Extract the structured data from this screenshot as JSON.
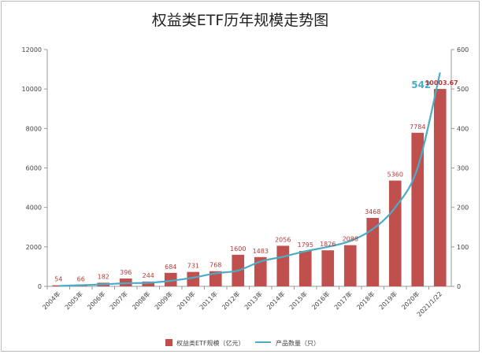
{
  "chart_data": {
    "type": "bar",
    "title": "权益类ETF历年规模走势图",
    "categories": [
      "2004年",
      "2005年",
      "2006年",
      "2007年",
      "2008年",
      "2009年",
      "2010年",
      "2011年",
      "2012年",
      "2013年",
      "2014年",
      "2015年",
      "2016年",
      "2017年",
      "2018年",
      "2019年",
      "2020年",
      "2021/1/22"
    ],
    "series": [
      {
        "name": "权益类ETF规模（亿元）",
        "type": "bar",
        "axis": "left",
        "color": "#c0504d",
        "values": [
          54,
          66,
          182,
          396,
          244,
          684,
          731,
          768,
          1600,
          1483,
          2056,
          1795,
          1826,
          2088,
          3468,
          5360,
          7784,
          10003.67
        ],
        "labels": [
          "54",
          "66",
          "182",
          "396",
          "244",
          "684",
          "731",
          "768",
          "1600",
          "1483",
          "2056",
          "1795",
          "1826",
          "2088",
          "3468",
          "5360",
          "7784",
          "10003.67"
        ]
      },
      {
        "name": "产品数量（只）",
        "type": "line",
        "axis": "right",
        "color": "#4bacc6",
        "values": [
          1,
          3,
          5,
          8,
          9,
          14,
          22,
          33,
          40,
          63,
          75,
          89,
          100,
          115,
          145,
          200,
          300,
          542
        ],
        "highlight_label": "542"
      }
    ],
    "ylim_left": [
      0,
      12000
    ],
    "yticks_left": [
      0,
      2000,
      4000,
      6000,
      8000,
      10000,
      12000
    ],
    "ylim_right": [
      0,
      600
    ],
    "yticks_right": [
      0,
      100,
      200,
      300,
      400,
      500,
      600
    ],
    "grid": false,
    "legend_position": "bottom"
  }
}
